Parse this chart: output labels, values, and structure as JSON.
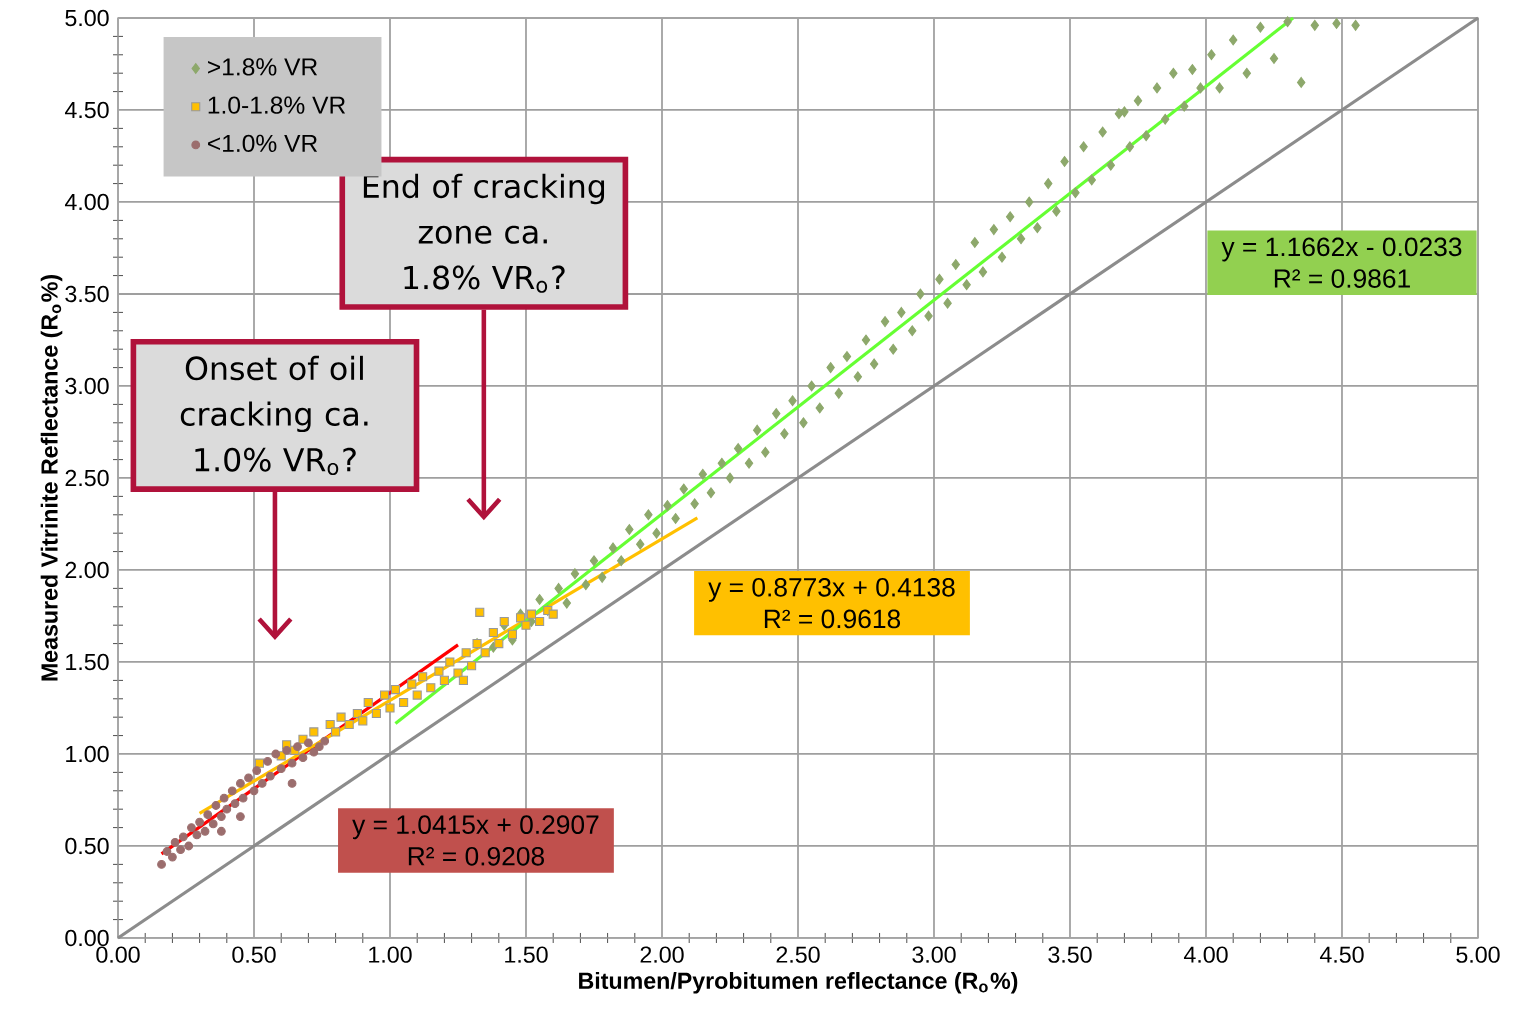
{
  "chart_data": {
    "type": "scatter",
    "xlabel": "Bitumen/Pyrobitumen  reflectance  (R$_{o}$%)",
    "ylabel": "Measured  Vitrinite  Reflectance  (R$_{o}$%)",
    "xlim": [
      0,
      5
    ],
    "ylim": [
      0,
      5
    ],
    "xticks": [
      {
        "value": 0,
        "label": "0.00"
      },
      {
        "value": 0.5,
        "label": "0.50"
      },
      {
        "value": 1,
        "label": "1.00"
      },
      {
        "value": 1.5,
        "label": "1.50"
      },
      {
        "value": 2,
        "label": "2.00"
      },
      {
        "value": 2.5,
        "label": "2.50"
      },
      {
        "value": 3,
        "label": "3.00"
      },
      {
        "value": 3.5,
        "label": "3.50"
      },
      {
        "value": 4,
        "label": "4.00"
      },
      {
        "value": 4.5,
        "label": "4.50"
      },
      {
        "value": 5,
        "label": "5.00"
      }
    ],
    "yticks": [
      {
        "value": 0,
        "label": "0.00"
      },
      {
        "value": 0.5,
        "label": "0.50"
      },
      {
        "value": 1,
        "label": "1.00"
      },
      {
        "value": 1.5,
        "label": "1.50"
      },
      {
        "value": 2,
        "label": "2.00"
      },
      {
        "value": 2.5,
        "label": "2.50"
      },
      {
        "value": 3,
        "label": "3.00"
      },
      {
        "value": 3.5,
        "label": "3.50"
      },
      {
        "value": 4,
        "label": "4.00"
      },
      {
        "value": 4.5,
        "label": "4.50"
      },
      {
        "value": 5,
        "label": "5.00"
      }
    ],
    "grid": true,
    "legend": "top left",
    "series": [
      {
        "name": ">1.8% VR",
        "color": "#8da86b",
        "marker": "diamond",
        "x": [
          1.32,
          1.38,
          1.42,
          1.45,
          1.48,
          1.52,
          1.55,
          1.58,
          1.62,
          1.65,
          1.68,
          1.72,
          1.75,
          1.78,
          1.82,
          1.85,
          1.88,
          1.92,
          1.95,
          1.98,
          2.02,
          2.05,
          2.08,
          2.12,
          2.15,
          2.18,
          2.22,
          2.25,
          2.28,
          2.32,
          2.35,
          2.38,
          2.42,
          2.45,
          2.48,
          2.52,
          2.55,
          2.58,
          2.62,
          2.65,
          2.68,
          2.72,
          2.75,
          2.78,
          2.82,
          2.85,
          2.88,
          2.92,
          2.95,
          2.98,
          3.02,
          3.05,
          3.08,
          3.12,
          3.15,
          3.18,
          3.22,
          3.25,
          3.28,
          3.32,
          3.35,
          3.38,
          3.42,
          3.45,
          3.48,
          3.52,
          3.55,
          3.58,
          3.62,
          3.65,
          3.68,
          3.7,
          3.72,
          3.75,
          3.78,
          3.82,
          3.85,
          3.88,
          3.92,
          3.95,
          3.98,
          4.02,
          4.05,
          4.1,
          4.15,
          4.2,
          4.25,
          4.3,
          4.35,
          4.4,
          4.48,
          4.55
        ],
        "values": [
          1.6,
          1.58,
          1.7,
          1.62,
          1.76,
          1.72,
          1.84,
          1.78,
          1.9,
          1.82,
          1.98,
          1.92,
          2.05,
          1.96,
          2.12,
          2.05,
          2.22,
          2.14,
          2.3,
          2.2,
          2.35,
          2.28,
          2.44,
          2.36,
          2.52,
          2.42,
          2.58,
          2.5,
          2.66,
          2.58,
          2.76,
          2.64,
          2.85,
          2.74,
          2.92,
          2.8,
          3.0,
          2.88,
          3.1,
          2.96,
          3.16,
          3.05,
          3.25,
          3.12,
          3.35,
          3.2,
          3.4,
          3.3,
          3.5,
          3.38,
          3.58,
          3.45,
          3.66,
          3.55,
          3.78,
          3.62,
          3.85,
          3.7,
          3.92,
          3.8,
          4.0,
          3.86,
          4.1,
          3.95,
          4.22,
          4.05,
          4.3,
          4.12,
          4.38,
          4.2,
          4.48,
          4.49,
          4.3,
          4.55,
          4.36,
          4.62,
          4.45,
          4.7,
          4.52,
          4.72,
          4.62,
          4.8,
          4.62,
          4.88,
          4.7,
          4.95,
          4.78,
          4.98,
          4.65,
          4.96,
          4.97,
          4.96
        ]
      },
      {
        "name": "1.0-1.8% VR",
        "color": "#ffc000",
        "marker": "square",
        "x": [
          0.52,
          0.55,
          0.58,
          0.6,
          0.62,
          0.65,
          0.68,
          0.7,
          0.72,
          0.75,
          0.78,
          0.8,
          0.82,
          0.85,
          0.88,
          0.9,
          0.92,
          0.95,
          0.98,
          1.0,
          1.02,
          1.05,
          1.08,
          1.1,
          1.12,
          1.15,
          1.18,
          1.2,
          1.22,
          1.25,
          1.28,
          1.3,
          1.32,
          1.35,
          1.38,
          1.4,
          1.42,
          1.45,
          1.48,
          1.5,
          1.52,
          1.55,
          1.58,
          1.6,
          1.27,
          1.33
        ],
        "values": [
          0.95,
          null,
          null,
          0.99,
          1.05,
          1.02,
          1.08,
          null,
          1.12,
          null,
          1.16,
          1.12,
          1.2,
          1.16,
          1.22,
          1.18,
          1.28,
          1.22,
          1.32,
          1.25,
          1.35,
          1.28,
          1.38,
          1.32,
          1.42,
          1.36,
          1.45,
          1.4,
          1.5,
          1.44,
          1.55,
          1.48,
          1.6,
          1.55,
          1.66,
          1.6,
          1.72,
          1.65,
          1.74,
          1.7,
          1.76,
          1.72,
          1.78,
          1.76,
          1.4,
          1.77
        ]
      },
      {
        "name": "<1.0% VR",
        "color": "#9b6d6d",
        "marker": "circle",
        "x": [
          0.16,
          0.18,
          0.2,
          0.21,
          0.23,
          0.24,
          0.26,
          0.27,
          0.29,
          0.3,
          0.32,
          0.33,
          0.35,
          0.36,
          0.38,
          0.39,
          0.4,
          0.42,
          0.43,
          0.45,
          0.46,
          0.48,
          0.5,
          0.51,
          0.53,
          0.55,
          0.56,
          0.58,
          0.6,
          0.62,
          0.64,
          0.66,
          0.68,
          0.7,
          0.72,
          0.74,
          0.76,
          0.38,
          0.45,
          0.64
        ],
        "values": [
          0.4,
          0.47,
          0.44,
          0.52,
          0.48,
          0.55,
          0.5,
          0.6,
          0.56,
          0.63,
          0.58,
          0.67,
          0.62,
          0.72,
          0.66,
          0.76,
          0.7,
          0.8,
          0.73,
          0.84,
          0.76,
          0.87,
          0.8,
          0.91,
          0.84,
          0.96,
          0.88,
          1.0,
          0.92,
          1.02,
          0.95,
          1.04,
          0.98,
          1.06,
          1.01,
          1.04,
          1.07,
          0.58,
          0.66,
          0.84
        ]
      },
      {
        "type": "line",
        "color": "#ff0000",
        "marker": "none",
        "line_style": "solid",
        "x": [
          0.16,
          1.25
        ],
        "values": [
          0.457,
          1.593
        ]
      },
      {
        "type": "line",
        "color": "#ffc000",
        "marker": "none",
        "line_style": "solid",
        "x": [
          0.3,
          2.13
        ],
        "values": [
          0.677,
          2.283
        ]
      },
      {
        "type": "line",
        "color": "#66ff33",
        "marker": "none",
        "line_style": "solid",
        "x": [
          1.02,
          4.32
        ],
        "values": [
          1.166,
          5.0
        ]
      },
      {
        "type": "line",
        "color": "#8c8c8c",
        "marker": "none",
        "line_style": "solid",
        "x": [
          0,
          5
        ],
        "values": [
          0,
          5
        ]
      }
    ],
    "annotations": [
      "End of cracking zone ca. 1.8% VR$_{o}$?",
      "Onset of oil cracking ca. 1.0% VR$_{o}$?",
      "y = 1.1662x - 0.0233",
      "R² = 0.9861",
      "y = 0.8773x + 0.4138",
      "R² = 0.9618",
      "y = 1.0415x + 0.2907",
      "R² = 0.9208"
    ]
  }
}
